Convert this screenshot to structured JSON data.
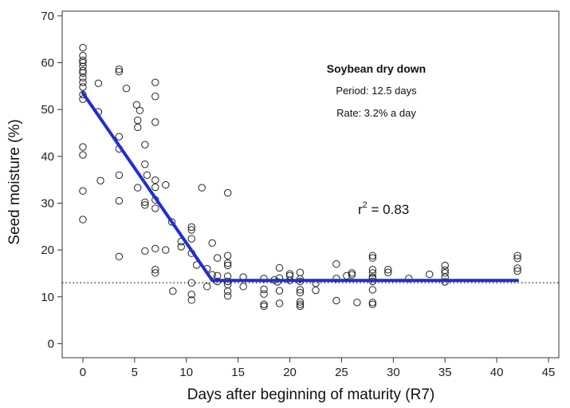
{
  "chart_data": {
    "type": "scatter",
    "title": "",
    "xlabel": "Days after beginning of maturity (R7)",
    "ylabel": "Seed moisture (%)",
    "xlim": [
      -2,
      46
    ],
    "ylim": [
      -3,
      71
    ],
    "x_ticks": [
      0,
      5,
      10,
      15,
      20,
      25,
      30,
      35,
      40,
      45
    ],
    "y_ticks": [
      0,
      10,
      20,
      30,
      40,
      50,
      60,
      70
    ],
    "grid": false,
    "annotation": {
      "title": "Soybean dry down",
      "period": "Period: 12.5 days",
      "rate": "Rate: 3.2% a day",
      "r2_base": "r",
      "r2_sup": "2",
      "r2_rest": " = 0.83"
    },
    "reference_line": {
      "y": 13,
      "style": "dotted"
    },
    "fit_line": {
      "color": "#1f2fcc",
      "points": [
        [
          0,
          53.5
        ],
        [
          12.5,
          13.5
        ],
        [
          42,
          13.5
        ]
      ]
    },
    "points": [
      [
        0,
        63.2
      ],
      [
        0,
        61.5
      ],
      [
        0,
        60.5
      ],
      [
        0,
        60
      ],
      [
        0,
        59.2
      ],
      [
        0,
        58.3
      ],
      [
        0,
        57.8
      ],
      [
        0,
        56.8
      ],
      [
        0,
        55.8
      ],
      [
        0,
        54.8
      ],
      [
        0,
        53.2
      ],
      [
        0,
        52.2
      ],
      [
        0,
        42
      ],
      [
        0,
        40.3
      ],
      [
        0,
        32.6
      ],
      [
        0,
        26.5
      ],
      [
        1.5,
        55.6
      ],
      [
        1.5,
        49.5
      ],
      [
        1.7,
        34.8
      ],
      [
        3.5,
        58.6
      ],
      [
        3.5,
        58.1
      ],
      [
        3.5,
        44.2
      ],
      [
        3.5,
        41.6
      ],
      [
        3.5,
        36
      ],
      [
        3.5,
        30.5
      ],
      [
        3.5,
        18.6
      ],
      [
        4.2,
        54.5
      ],
      [
        5.2,
        51
      ],
      [
        5.3,
        47.7
      ],
      [
        5.3,
        46.2
      ],
      [
        5.5,
        49.8
      ],
      [
        5.3,
        33.3
      ],
      [
        6,
        42.5
      ],
      [
        6,
        38.3
      ],
      [
        6.2,
        36
      ],
      [
        6,
        30.2
      ],
      [
        6,
        29.6
      ],
      [
        6,
        19.8
      ],
      [
        7,
        55.8
      ],
      [
        7,
        52.8
      ],
      [
        7,
        47.3
      ],
      [
        7,
        34.9
      ],
      [
        7,
        33.4
      ],
      [
        7,
        30.7
      ],
      [
        7,
        28.9
      ],
      [
        7,
        20.3
      ],
      [
        7,
        15.8
      ],
      [
        7,
        15.1
      ],
      [
        8,
        33.9
      ],
      [
        8,
        20
      ],
      [
        8.6,
        26
      ],
      [
        8.7,
        11.2
      ],
      [
        9.5,
        21.8
      ],
      [
        9.5,
        20.7
      ],
      [
        10.5,
        24.9
      ],
      [
        10.5,
        24.3
      ],
      [
        10.5,
        22.4
      ],
      [
        10.5,
        19.3
      ],
      [
        10.5,
        13
      ],
      [
        10.5,
        10.5
      ],
      [
        10.5,
        9.3
      ],
      [
        11,
        16.8
      ],
      [
        11.5,
        33.3
      ],
      [
        12,
        16
      ],
      [
        12,
        12.2
      ],
      [
        12.5,
        21.5
      ],
      [
        12.5,
        14.7
      ],
      [
        13,
        18.3
      ],
      [
        13,
        14.5
      ],
      [
        13,
        13.3
      ],
      [
        14,
        32.2
      ],
      [
        14,
        18.8
      ],
      [
        14,
        17.2
      ],
      [
        14,
        16.7
      ],
      [
        14,
        14.4
      ],
      [
        14,
        13.3
      ],
      [
        14,
        12.6
      ],
      [
        14,
        11.2
      ],
      [
        14,
        10.2
      ],
      [
        15.5,
        14.2
      ],
      [
        15.5,
        12.2
      ],
      [
        17.5,
        13.9
      ],
      [
        17.5,
        11.6
      ],
      [
        17.5,
        10.6
      ],
      [
        17.5,
        8.4
      ],
      [
        17.5,
        8
      ],
      [
        18.5,
        13.6
      ],
      [
        18.8,
        13.2
      ],
      [
        19,
        16.2
      ],
      [
        19,
        14
      ],
      [
        19,
        11.3
      ],
      [
        19,
        8.6
      ],
      [
        20,
        14.9
      ],
      [
        20,
        14.5
      ],
      [
        20,
        13.5
      ],
      [
        21,
        15.2
      ],
      [
        21,
        13.8
      ],
      [
        21,
        13.3
      ],
      [
        21,
        11.5
      ],
      [
        21,
        10.9
      ],
      [
        21,
        8.9
      ],
      [
        21,
        8.4
      ],
      [
        21,
        8
      ],
      [
        22.5,
        12.9
      ],
      [
        22.5,
        11.4
      ],
      [
        24.5,
        17
      ],
      [
        24.5,
        13.9
      ],
      [
        24.5,
        9.2
      ],
      [
        25.5,
        14.5
      ],
      [
        26,
        15.1
      ],
      [
        26,
        14.7
      ],
      [
        26.5,
        8.8
      ],
      [
        28,
        18.8
      ],
      [
        28,
        18.3
      ],
      [
        28,
        15.8
      ],
      [
        28,
        15.1
      ],
      [
        28,
        14.2
      ],
      [
        28,
        13.9
      ],
      [
        28,
        13.3
      ],
      [
        28,
        11.5
      ],
      [
        28,
        8.8
      ],
      [
        28,
        8.4
      ],
      [
        29.5,
        15.8
      ],
      [
        29.5,
        15.2
      ],
      [
        31.5,
        13.9
      ],
      [
        33.5,
        14.8
      ],
      [
        35,
        16.7
      ],
      [
        35,
        15.7
      ],
      [
        35,
        15.1
      ],
      [
        35,
        14.2
      ],
      [
        35,
        13.2
      ],
      [
        42,
        18.8
      ],
      [
        42,
        18.2
      ],
      [
        42,
        16.1
      ],
      [
        42,
        15.5
      ]
    ]
  }
}
